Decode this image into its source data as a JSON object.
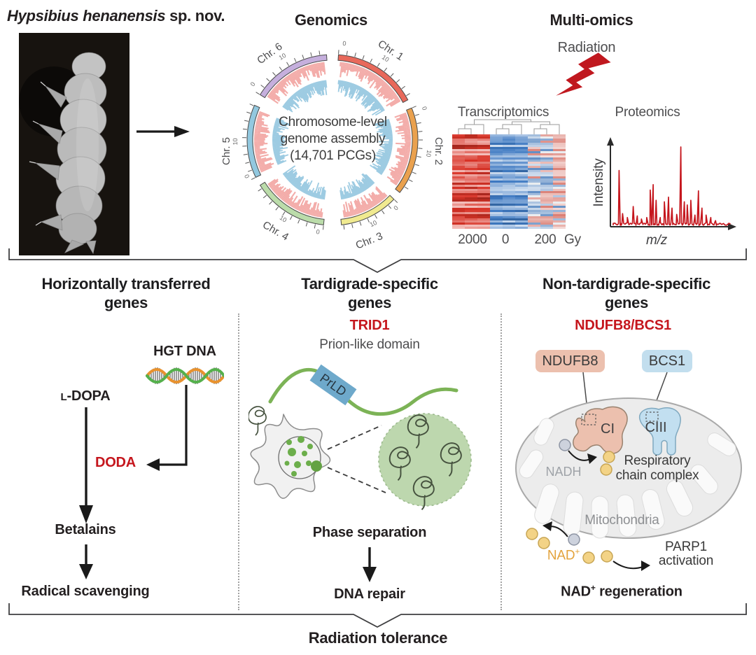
{
  "header": {
    "species_italic": "Hypsibius henanensis",
    "species_suffix": " sp. nov."
  },
  "genomics": {
    "heading": "Genomics",
    "center_lines": [
      "Chromosome-level",
      "genome assembly",
      "(14,701 PCGs)"
    ],
    "tick_zero": "0",
    "tick_ten": "10",
    "chromosomes": [
      {
        "name": "Chr. 1",
        "color": "#e8695b",
        "start": 4,
        "end": 62,
        "label_angle": 33,
        "label_rot": 33
      },
      {
        "name": "Chr. 2",
        "color": "#eaa14e",
        "start": 68,
        "end": 128,
        "label_angle": 96,
        "label_rot": 90
      },
      {
        "name": "Chr. 3",
        "color": "#f0ea90",
        "start": 134,
        "end": 174,
        "label_angle": 160,
        "label_rot": -22
      },
      {
        "name": "Chr. 4",
        "color": "#bbdcaa",
        "start": 186,
        "end": 238,
        "label_angle": 212,
        "label_rot": 30
      },
      {
        "name": "Chr. 5",
        "color": "#92c8df",
        "start": 244,
        "end": 294,
        "label_angle": 264,
        "label_rot": -90
      },
      {
        "name": "Chr. 6",
        "color": "#c5afdd",
        "start": 302,
        "end": 356,
        "label_angle": 324,
        "label_rot": -36
      }
    ],
    "hist_outer_color": "#f3aca9",
    "hist_inner_color": "#9dcbe2"
  },
  "multiomics": {
    "heading": "Multi-omics",
    "radiation": "Radiation",
    "bolt_color": "#c0181f",
    "transcriptomics": {
      "heading": "Transcriptomics",
      "doses": [
        "2000",
        "0",
        "200"
      ],
      "unit": "Gy",
      "groups": [
        {
          "label": "2000",
          "palette": "red"
        },
        {
          "label": "0",
          "palette": "blue"
        },
        {
          "label": "200",
          "palette": "mixed"
        }
      ]
    },
    "proteomics": {
      "heading": "Proteomics",
      "ylabel": "Intensity",
      "xlabel": "m/z",
      "trace_color": "#c5161d",
      "peaks": [
        [
          0.05,
          0.7
        ],
        [
          0.08,
          0.15
        ],
        [
          0.12,
          0.1
        ],
        [
          0.17,
          0.24
        ],
        [
          0.205,
          0.12
        ],
        [
          0.24,
          0.08
        ],
        [
          0.285,
          0.1
        ],
        [
          0.315,
          0.45
        ],
        [
          0.34,
          0.52
        ],
        [
          0.365,
          0.32
        ],
        [
          0.4,
          0.1
        ],
        [
          0.435,
          0.3
        ],
        [
          0.47,
          0.36
        ],
        [
          0.5,
          0.22
        ],
        [
          0.54,
          0.14
        ],
        [
          0.575,
          1.0
        ],
        [
          0.605,
          0.3
        ],
        [
          0.63,
          0.26
        ],
        [
          0.66,
          0.32
        ],
        [
          0.695,
          0.13
        ],
        [
          0.725,
          0.44
        ],
        [
          0.755,
          0.22
        ],
        [
          0.79,
          0.13
        ],
        [
          0.83,
          0.1
        ],
        [
          0.87,
          0.06
        ]
      ]
    }
  },
  "columns": {
    "hgt": {
      "heading1": "Horizontally transferred",
      "heading2": "genes",
      "dna_label": "HGT DNA",
      "substrate_prefix": "L",
      "substrate_rest": "-DOPA",
      "enzyme": "DODA",
      "product": "Betalains",
      "outcome": "Radical scavenging"
    },
    "tardigrade": {
      "heading1": "Tardigrade-specific",
      "heading2": "genes",
      "gene": "TRID1",
      "domain": "Prion-like domain",
      "prld": "PrLD",
      "process": "Phase separation",
      "outcome": "DNA repair"
    },
    "nontardigrade": {
      "heading1": "Non-tardigrade-specific",
      "heading2": "genes",
      "gene": "NDUFB8/BCS1",
      "box1": "NDUFB8",
      "box2": "BCS1",
      "complex1": "CI",
      "complex2": "CIII",
      "nadh": "NADH",
      "resp1": "Respiratory",
      "resp2": "chain complex",
      "mito": "Mitochondria",
      "nad_base": "NAD",
      "nad_sup": "+",
      "parp1": "PARP1",
      "parp2": "activation",
      "outcome_base": "NAD",
      "outcome_sup": "+",
      "outcome_rest": " regeneration"
    }
  },
  "footer": {
    "label": "Radiation tolerance"
  },
  "colors": {
    "accent_red": "#c5161d",
    "text_dark": "#231f20",
    "text_gray": "#4d4d4f",
    "salmon": "#ecc0ae",
    "light_blue": "#c2deee",
    "green": "#7cb356",
    "prld_blue": "#6ea9cb",
    "condensate_green": "#bdd7ae",
    "nad_yellow": "#f3d386",
    "nad_text": "#e3a33c"
  }
}
